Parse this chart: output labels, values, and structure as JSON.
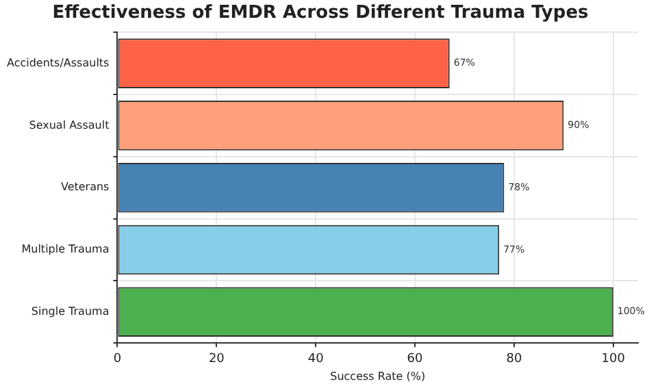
{
  "chart_data": {
    "type": "bar",
    "orientation": "horizontal",
    "title": "Effectiveness of EMDR Across Different Trauma Types",
    "xlabel": "Success Rate (%)",
    "categories": [
      "Accidents/Assaults",
      "Sexual Assault",
      "Veterans",
      "Multiple Trauma",
      "Single Trauma"
    ],
    "values": [
      67,
      90,
      78,
      77,
      100
    ],
    "colors": [
      "#ff6347",
      "#ffa07a",
      "#4682b4",
      "#87ceeb",
      "#4caf50"
    ],
    "value_labels": [
      "67%",
      "90%",
      "78%",
      "77%",
      "100%"
    ],
    "xlim": [
      0,
      105
    ],
    "xticks": [
      0,
      20,
      40,
      60,
      80,
      100
    ],
    "grid": true,
    "legend": false
  }
}
